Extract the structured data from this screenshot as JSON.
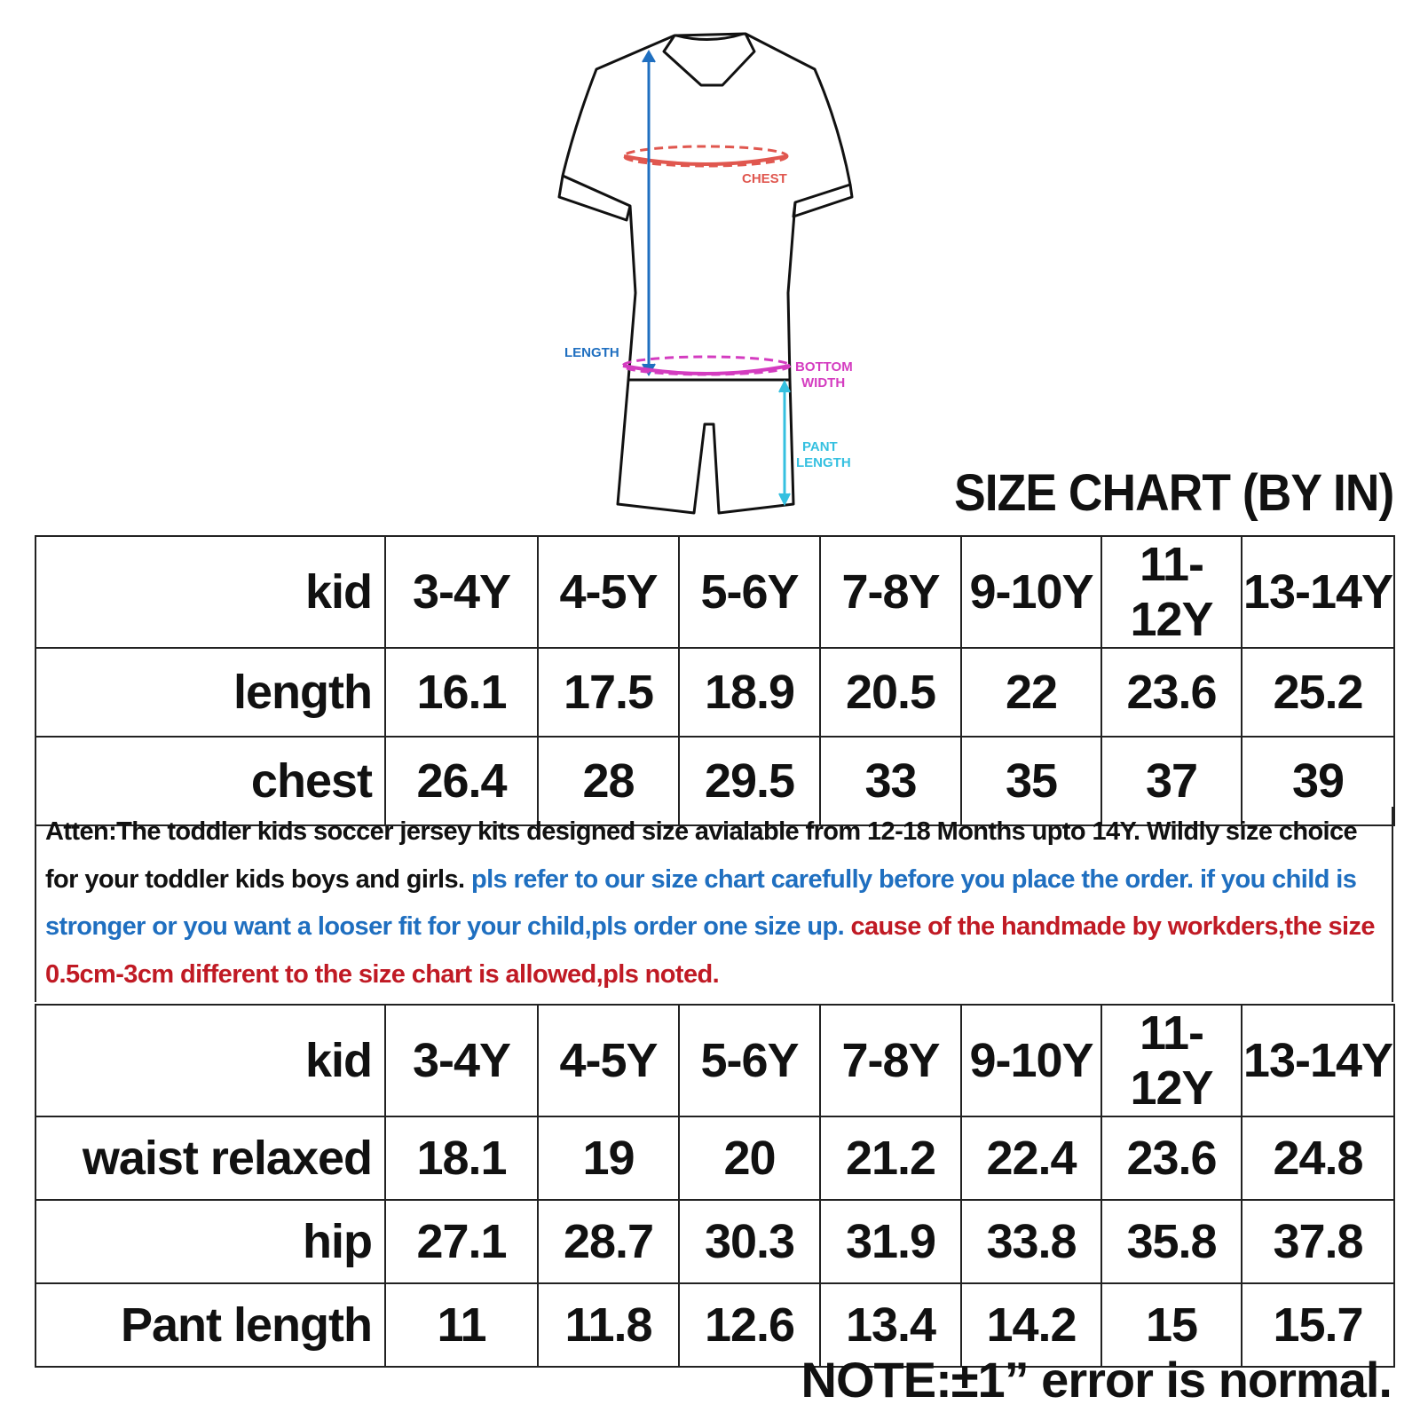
{
  "diagram": {
    "labels": {
      "chest": "CHEST",
      "length": "LENGTH",
      "bottom_width_1": "BOTTOM",
      "bottom_width_2": "WIDTH",
      "pant_length_1": "PANT",
      "pant_length_2": "LENGTH"
    },
    "colors": {
      "chest": "#e0574f",
      "length": "#1f6fc0",
      "bottom_width": "#d43cc0",
      "pant_length": "#35c0e0"
    }
  },
  "title": "SIZE CHART (BY IN)",
  "top_table": {
    "header": [
      "kid",
      "3-4Y",
      "4-5Y",
      "5-6Y",
      "7-8Y",
      "9-10Y",
      "11-12Y",
      "13-14Y"
    ],
    "rows": [
      {
        "label": "length",
        "values": [
          "16.1",
          "17.5",
          "18.9",
          "20.5",
          "22",
          "23.6",
          "25.2"
        ]
      },
      {
        "label": "chest",
        "values": [
          "26.4",
          "28",
          "29.5",
          "33",
          "35",
          "37",
          "39"
        ]
      }
    ]
  },
  "note": {
    "black": "Atten:The toddler kids soccer jersey kits designed size avialable from 12-18 Months upto 14Y. Wildly size choice for your toddler kids boys and girls. ",
    "blue": "pls refer to our size chart carefully before you place the order. if you child is stronger or you want a looser fit for your child,pls order one size up. ",
    "red": "cause of the handmade by workders,the size 0.5cm-3cm different to the size chart is allowed,pls noted."
  },
  "bottom_table": {
    "header": [
      "kid",
      "3-4Y",
      "4-5Y",
      "5-6Y",
      "7-8Y",
      "9-10Y",
      "11-12Y",
      "13-14Y"
    ],
    "rows": [
      {
        "label": "waist relaxed",
        "values": [
          "18.1",
          "19",
          "20",
          "21.2",
          "22.4",
          "23.6",
          "24.8"
        ]
      },
      {
        "label": "hip",
        "values": [
          "27.1",
          "28.7",
          "30.3",
          "31.9",
          "33.8",
          "35.8",
          "37.8"
        ]
      },
      {
        "label": "Pant length",
        "values": [
          "11",
          "11.8",
          "12.6",
          "13.4",
          "14.2",
          "15",
          "15.7"
        ]
      }
    ]
  },
  "footnote": "NOTE:±1” error is normal."
}
